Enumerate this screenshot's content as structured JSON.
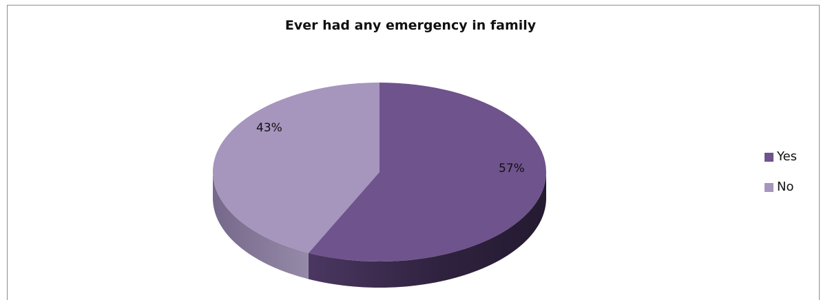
{
  "chart_data": {
    "type": "pie",
    "title": "Ever had any emergency in family",
    "categories": [
      "Yes",
      "No"
    ],
    "values": [
      57,
      43
    ],
    "labels": [
      "57%",
      "43%"
    ],
    "colors": [
      "#6f538c",
      "#a695bd"
    ],
    "legend_placement": "right",
    "style": "3d"
  }
}
